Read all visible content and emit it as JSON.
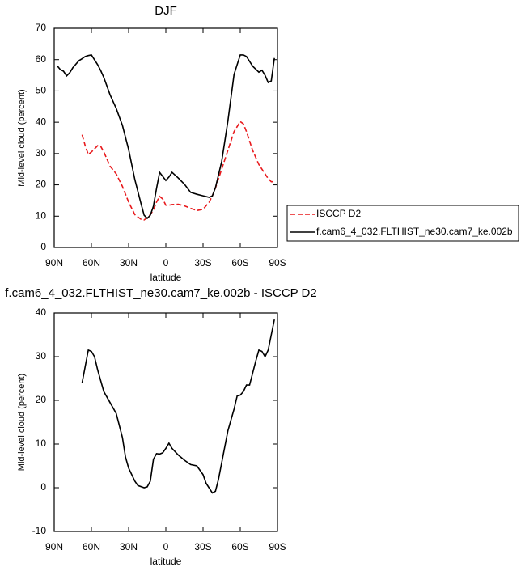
{
  "chart_data": [
    {
      "type": "line",
      "title": "DJF",
      "xlabel": "latitude",
      "ylabel": "Mid-level cloud (percent)",
      "xlim": [
        90,
        -90
      ],
      "xticks": [
        {
          "value": 90,
          "label": "90N"
        },
        {
          "value": 60,
          "label": "60N"
        },
        {
          "value": 30,
          "label": "30N"
        },
        0,
        {
          "value": -30,
          "label": "30S"
        },
        {
          "value": -60,
          "label": "60S"
        },
        {
          "value": -90,
          "label": "90S"
        }
      ],
      "ylim": [
        0,
        70
      ],
      "yticks": [
        0,
        10,
        20,
        30,
        40,
        50,
        60,
        70
      ],
      "legend": "right",
      "x": [
        87.5,
        85,
        82.5,
        80,
        77.5,
        75,
        70,
        67.5,
        65,
        62.5,
        60,
        55,
        52.5,
        50,
        45,
        40,
        35,
        30,
        25,
        20,
        17.5,
        15,
        12.5,
        10,
        7.5,
        5,
        2.5,
        0,
        -2.5,
        -5,
        -10,
        -15,
        -20,
        -25,
        -30,
        -35,
        -37.5,
        -40,
        -45,
        -50,
        -55,
        -60,
        -62.5,
        -65,
        -70,
        -75,
        -77.5,
        -80,
        -82.5,
        -85,
        -87.5
      ],
      "series": [
        {
          "name": "ISCCP D2",
          "color": "#e8191c",
          "style": "dashed",
          "values": [
            null,
            null,
            null,
            null,
            null,
            null,
            null,
            36,
            32.5,
            29.7,
            30.5,
            32.5,
            32.3,
            30.5,
            26,
            23.5,
            19.5,
            14.5,
            10.5,
            9,
            8.8,
            9.5,
            10.5,
            12,
            14.5,
            16.3,
            15.5,
            13.5,
            13.5,
            13.7,
            13.8,
            13.3,
            12.5,
            11.8,
            12.2,
            14.5,
            16.5,
            19,
            25,
            31,
            37,
            40.2,
            39.5,
            37,
            31,
            26.5,
            25,
            23.5,
            22,
            21,
            21
          ]
        },
        {
          "name": "f.cam6_4_032.FLTHIST_ne30.cam7_ke.002b",
          "color": "#000000",
          "style": "solid",
          "values": [
            58,
            56.8,
            56.3,
            54.8,
            55.8,
            57.4,
            59.7,
            60.3,
            61,
            61.3,
            61.5,
            58.4,
            56.5,
            54.3,
            48.8,
            44.4,
            39,
            31.3,
            21.7,
            14,
            10.3,
            9.3,
            10.3,
            13.2,
            18.9,
            24,
            22.7,
            21.4,
            22.5,
            24,
            22.2,
            20.2,
            17.6,
            17,
            16.5,
            16,
            16.5,
            19.1,
            27.4,
            40.3,
            55.3,
            61.5,
            61.5,
            61,
            57.9,
            56,
            56.6,
            55,
            52.7,
            53.2,
            60.5
          ]
        }
      ]
    },
    {
      "type": "line",
      "title": "f.cam6_4_032.FLTHIST_ne30.cam7_ke.002b - ISCCP D2",
      "xlabel": "latitude",
      "ylabel": "Mid-level cloud (percent)",
      "xlim": [
        90,
        -90
      ],
      "xticks": [
        {
          "value": 90,
          "label": "90N"
        },
        {
          "value": 60,
          "label": "60N"
        },
        {
          "value": 30,
          "label": "30N"
        },
        0,
        {
          "value": -30,
          "label": "30S"
        },
        {
          "value": -60,
          "label": "60S"
        },
        {
          "value": -90,
          "label": "90S"
        }
      ],
      "ylim": [
        -10,
        40
      ],
      "yticks": [
        -10,
        0,
        10,
        20,
        30,
        40
      ],
      "x": [
        67.5,
        62.5,
        60,
        57.5,
        55,
        50,
        45,
        40,
        35,
        32.5,
        30,
        25,
        22.5,
        17.5,
        15,
        12.5,
        10,
        7.5,
        5,
        2.5,
        0,
        -2.5,
        -5,
        -10,
        -15,
        -20,
        -25,
        -30,
        -32.5,
        -37.5,
        -40,
        -42.5,
        -50,
        -55,
        -57.5,
        -60,
        -62.5,
        -65,
        -67.5,
        -72.5,
        -75,
        -77.5,
        -80,
        -82.5,
        -87.5
      ],
      "series": [
        {
          "color": "#000000",
          "style": "solid",
          "values": [
            24,
            31.5,
            31.2,
            30,
            27,
            22,
            19.5,
            17,
            11.5,
            7,
            4.5,
            1.5,
            0.5,
            0,
            0.2,
            1.5,
            6.5,
            7.8,
            7.7,
            8,
            9,
            10.2,
            9,
            7.5,
            6.3,
            5.3,
            5,
            3,
            1,
            -1.2,
            -0.8,
            2,
            13,
            18,
            21,
            21.2,
            22,
            23.5,
            23.5,
            29,
            31.5,
            31.2,
            30,
            31.5,
            38.5
          ]
        }
      ]
    }
  ]
}
